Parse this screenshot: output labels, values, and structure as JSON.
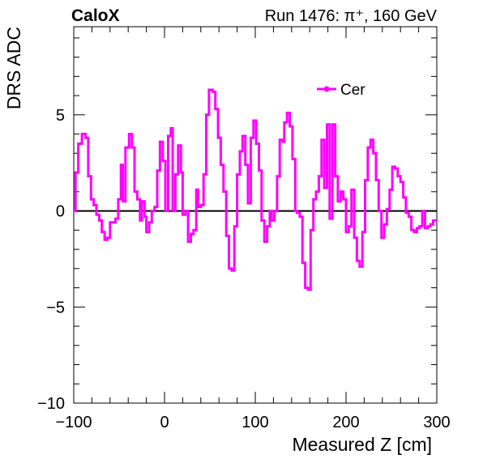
{
  "chart_data": {
    "type": "line",
    "step": true,
    "corner_left": "CaloX",
    "corner_right": "Run 1476:   π⁺, 160 GeV",
    "xlabel": "Measured Z [cm]",
    "ylabel": "DRS ADC",
    "xlim": [
      -100,
      300
    ],
    "ylim": [
      -10,
      9.5
    ],
    "x_ticks": [
      -100,
      0,
      100,
      200,
      300
    ],
    "x_tick_labels": [
      "−100",
      "0",
      "100",
      "200",
      "300"
    ],
    "y_ticks": [
      -10,
      -5,
      0,
      5
    ],
    "y_tick_labels": [
      "−10",
      "−5",
      "0",
      "5"
    ],
    "zero_line": true,
    "legend": {
      "position": "top-right",
      "entries": [
        "Cer"
      ]
    },
    "series": [
      {
        "name": "Cer",
        "color": "#ff00ff",
        "points": [
          [
            -100,
            0.0
          ],
          [
            -98,
            2.0
          ],
          [
            -95,
            3.5
          ],
          [
            -91,
            4.0
          ],
          [
            -87,
            3.8
          ],
          [
            -84,
            1.8
          ],
          [
            -81,
            0.6
          ],
          [
            -78,
            0.3
          ],
          [
            -75,
            -0.2
          ],
          [
            -72,
            -0.5
          ],
          [
            -69,
            -1.1
          ],
          [
            -66,
            -1.5
          ],
          [
            -63,
            -1.4
          ],
          [
            -60,
            -0.6
          ],
          [
            -57,
            -0.6
          ],
          [
            -54,
            -0.4
          ],
          [
            -51,
            0.6
          ],
          [
            -48,
            2.4
          ],
          [
            -46,
            0.5
          ],
          [
            -43,
            3.3
          ],
          [
            -39,
            4.0
          ],
          [
            -36,
            3.3
          ],
          [
            -33,
            1.0
          ],
          [
            -30,
            0.6
          ],
          [
            -27,
            -0.5
          ],
          [
            -25,
            0.5
          ],
          [
            -22,
            -0.3
          ],
          [
            -20,
            -1.1
          ],
          [
            -17,
            -0.6
          ],
          [
            -14,
            0.0
          ],
          [
            -11,
            0.2
          ],
          [
            -8,
            2.1
          ],
          [
            -5,
            3.6
          ],
          [
            -2,
            2.6
          ],
          [
            1,
            0.0
          ],
          [
            4,
            3.9
          ],
          [
            7,
            4.3
          ],
          [
            9,
            0.0
          ],
          [
            12,
            1.9
          ],
          [
            15,
            3.4
          ],
          [
            18,
            2.0
          ],
          [
            20,
            -0.2
          ],
          [
            23,
            0.0
          ],
          [
            26,
            -1.6
          ],
          [
            29,
            -1.2
          ],
          [
            32,
            -1.0
          ],
          [
            35,
            1.1
          ],
          [
            37,
            0.2
          ],
          [
            40,
            0.3
          ],
          [
            43,
            1.9
          ],
          [
            46,
            5.0
          ],
          [
            49,
            6.3
          ],
          [
            53,
            6.2
          ],
          [
            56,
            5.3
          ],
          [
            59,
            3.8
          ],
          [
            62,
            2.4
          ],
          [
            65,
            1.0
          ],
          [
            68,
            -1.3
          ],
          [
            71,
            -3.0
          ],
          [
            74,
            -3.1
          ],
          [
            77,
            -0.8
          ],
          [
            80,
            1.9
          ],
          [
            83,
            3.1
          ],
          [
            86,
            3.9
          ],
          [
            89,
            2.4
          ],
          [
            92,
            0.4
          ],
          [
            95,
            3.8
          ],
          [
            98,
            4.7
          ],
          [
            101,
            3.5
          ],
          [
            104,
            2.1
          ],
          [
            107,
            -0.5
          ],
          [
            110,
            -1.6
          ],
          [
            113,
            -0.8
          ],
          [
            116,
            0.0
          ],
          [
            118,
            -0.5
          ],
          [
            121,
            0.0
          ],
          [
            124,
            1.8
          ],
          [
            127,
            3.7
          ],
          [
            130,
            3.6
          ],
          [
            132,
            4.6
          ],
          [
            135,
            5.1
          ],
          [
            138,
            4.4
          ],
          [
            141,
            2.7
          ],
          [
            144,
            0.0
          ],
          [
            146,
            -0.1
          ],
          [
            149,
            -0.3
          ],
          [
            152,
            -2.7
          ],
          [
            155,
            -4.0
          ],
          [
            158,
            -4.1
          ],
          [
            161,
            -1.0
          ],
          [
            164,
            0.6
          ],
          [
            167,
            1.0
          ],
          [
            170,
            1.8
          ],
          [
            173,
            3.7
          ],
          [
            176,
            1.2
          ],
          [
            179,
            4.5
          ],
          [
            182,
            -0.4
          ],
          [
            185,
            4.5
          ],
          [
            188,
            1.8
          ],
          [
            191,
            0.5
          ],
          [
            194,
            1.0
          ],
          [
            197,
            0.6
          ],
          [
            200,
            -1.1
          ],
          [
            203,
            -0.8
          ],
          [
            206,
            1.1
          ],
          [
            209,
            -1.4
          ],
          [
            212,
            -2.6
          ],
          [
            215,
            -2.9
          ],
          [
            218,
            -1.1
          ],
          [
            221,
            1.6
          ],
          [
            224,
            3.3
          ],
          [
            227,
            3.7
          ],
          [
            230,
            3.0
          ],
          [
            233,
            1.6
          ],
          [
            236,
            0.0
          ],
          [
            239,
            -1.4
          ],
          [
            242,
            -0.7
          ],
          [
            245,
            0.1
          ],
          [
            248,
            1.1
          ],
          [
            251,
            2.3
          ],
          [
            254,
            2.2
          ],
          [
            257,
            1.8
          ],
          [
            260,
            1.5
          ],
          [
            263,
            0.7
          ],
          [
            266,
            -0.1
          ],
          [
            269,
            -0.3
          ],
          [
            272,
            -1.0
          ],
          [
            275,
            -1.1
          ],
          [
            278,
            -0.9
          ],
          [
            281,
            -0.8
          ],
          [
            284,
            0.0
          ],
          [
            287,
            -0.9
          ],
          [
            290,
            -0.8
          ],
          [
            293,
            -0.7
          ],
          [
            296,
            -0.5
          ],
          [
            300,
            -0.5
          ]
        ]
      }
    ]
  }
}
